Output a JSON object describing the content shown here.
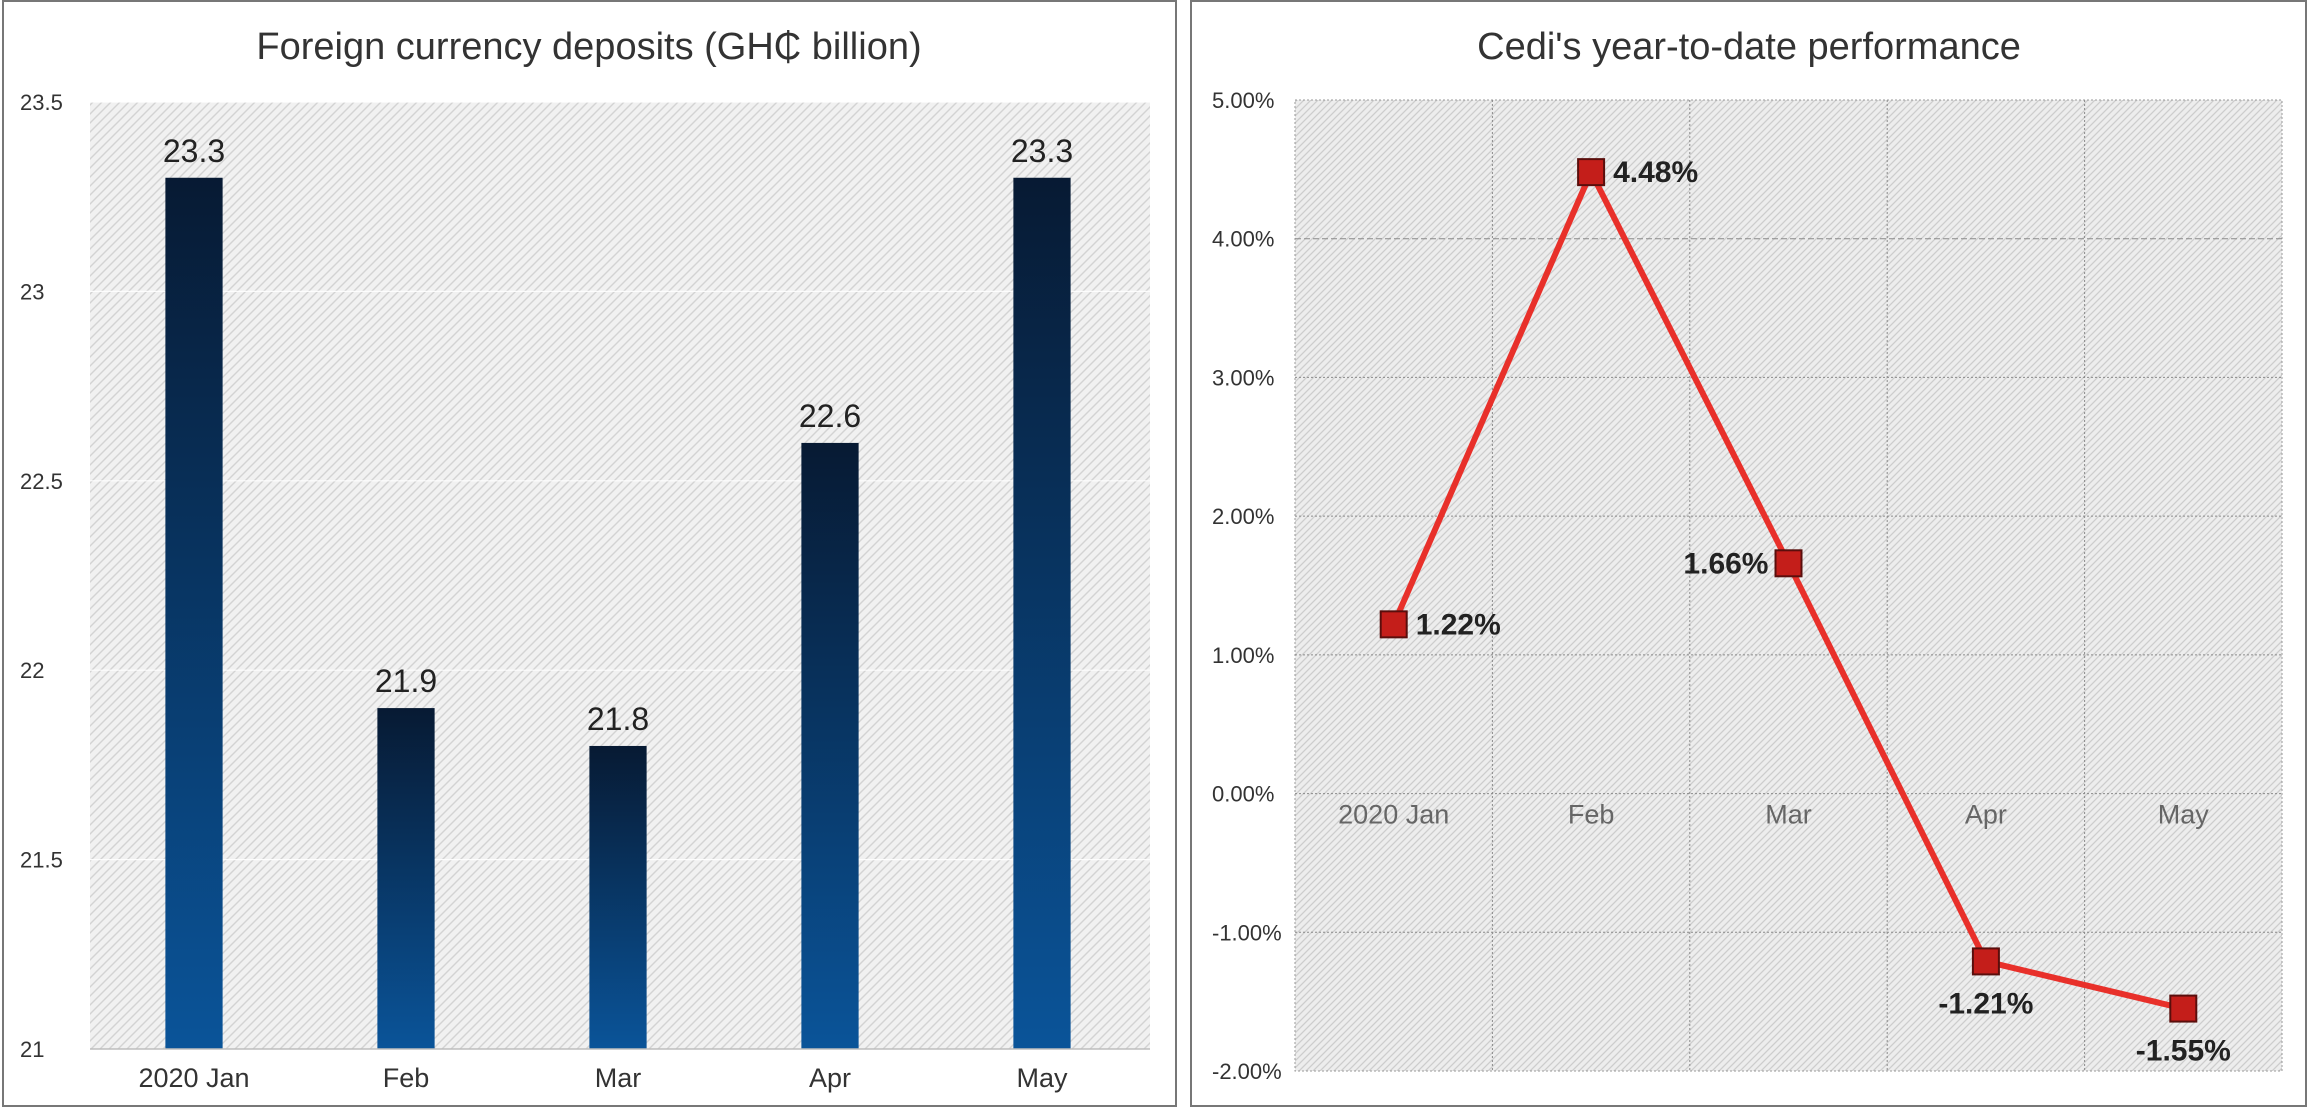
{
  "chart_data": [
    {
      "type": "bar",
      "title": "Foreign currency deposits (GH₵ billion)",
      "categories": [
        "2020 Jan",
        "Feb",
        "Mar",
        "Apr",
        "May"
      ],
      "values": [
        23.3,
        21.9,
        21.8,
        22.6,
        23.3
      ],
      "data_labels": [
        "23.3",
        "21.9",
        "21.8",
        "22.6",
        "23.3"
      ],
      "ylim": [
        21,
        23.5
      ],
      "yticks": [
        21,
        21.5,
        22,
        22.5,
        23,
        23.5
      ],
      "ytick_labels": [
        "21",
        "21.5",
        "22",
        "22.5",
        "23",
        "23.5"
      ],
      "grid": true,
      "legend": "none",
      "colors": {
        "bar_top": "#071a33",
        "bar_bottom": "#0a5499",
        "hatch": "#d8d8d8",
        "background": "#f1f1f1"
      }
    },
    {
      "type": "line",
      "title": "Cedi's year-to-date performance",
      "categories": [
        "2020 Jan",
        "Feb",
        "Mar",
        "Apr",
        "May"
      ],
      "values": [
        1.22,
        4.48,
        1.66,
        -1.21,
        -1.55
      ],
      "data_labels": [
        "1.22%",
        "4.48%",
        "1.66%",
        "-1.21%",
        "-1.55%"
      ],
      "ylim": [
        -2,
        5
      ],
      "yticks": [
        -2,
        -1,
        0,
        1,
        2,
        3,
        4,
        5
      ],
      "ytick_labels": [
        "-2.00%",
        "-1.00%",
        "0.00%",
        "1.00%",
        "2.00%",
        "3.00%",
        "4.00%",
        "5.00%"
      ],
      "grid": true,
      "legend": "none",
      "colors": {
        "line": "#e8302a",
        "marker": "#c41e1a",
        "marker_edge": "#5a0e0c",
        "hatch": "#d6d6d6",
        "background": "#efefef"
      }
    }
  ]
}
